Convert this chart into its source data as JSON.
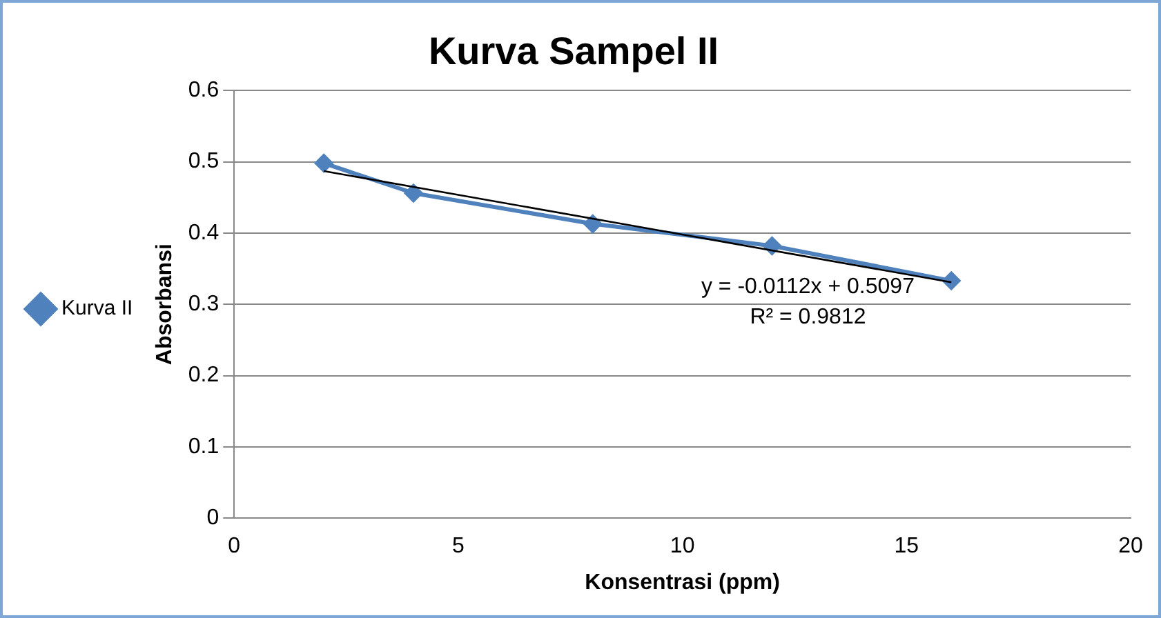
{
  "chart_data": {
    "type": "line",
    "title": "Kurva Sampel II",
    "xlabel": "Konsentrasi (ppm)",
    "ylabel": "Absorbansi",
    "xlim": [
      0,
      20
    ],
    "xticks": [
      0,
      5,
      10,
      15,
      20
    ],
    "ylim": [
      0,
      0.6
    ],
    "yticks": [
      0,
      0.1,
      0.2,
      0.3,
      0.4,
      0.5,
      0.6
    ],
    "grid": "y",
    "legend": "left",
    "marker": "diamond",
    "line_style": "solid",
    "series": [
      {
        "name": "Kurva II",
        "color": "#4f81bd",
        "x": [
          2,
          4,
          8,
          12,
          16
        ],
        "values": [
          0.498,
          0.456,
          0.413,
          0.382,
          0.333
        ]
      },
      {
        "type": "line",
        "color": "#000000",
        "marker": "none",
        "x": [
          2,
          16
        ],
        "values": [
          0.487,
          0.331
        ]
      }
    ],
    "annotations": [
      "y = -0.0112x + 0.5097",
      "R² = 0.9812"
    ]
  }
}
